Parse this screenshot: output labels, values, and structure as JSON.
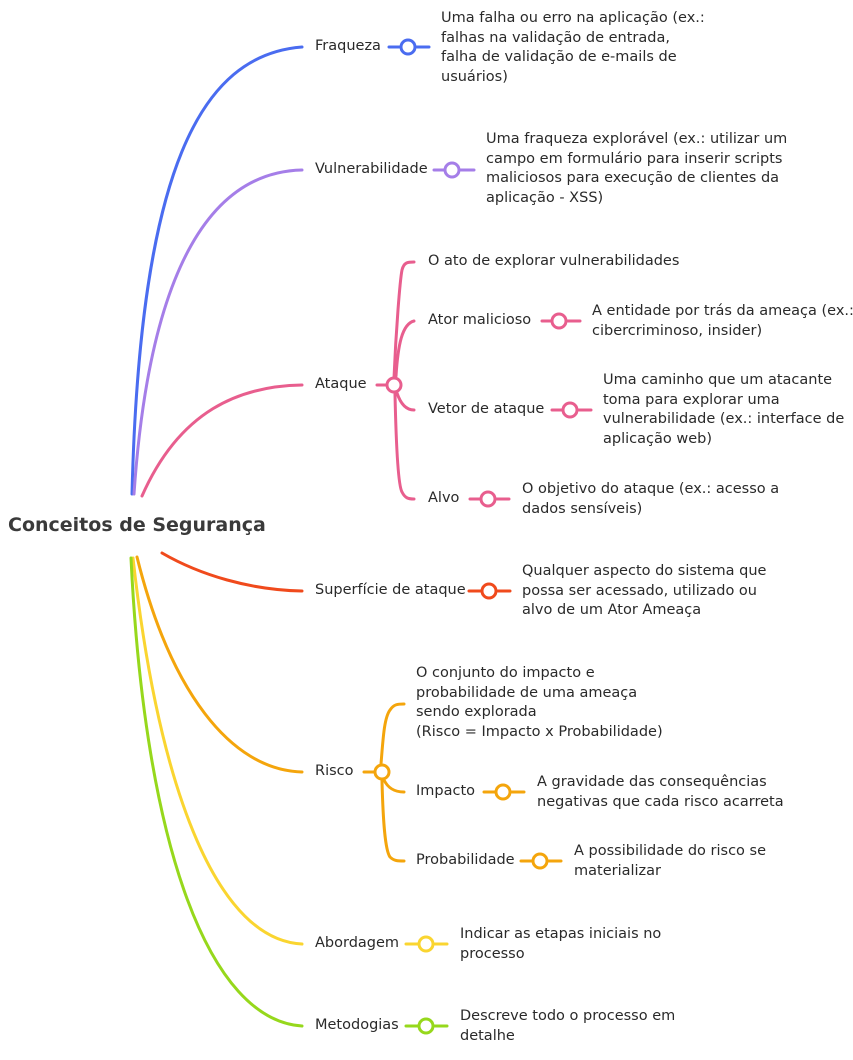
{
  "root": "Conceitos de Segurança",
  "colors": {
    "fraqueza": "#4a6cf0",
    "vulnerabilidade": "#a57ee8",
    "ataque": "#e85e8e",
    "superficie": "#f04a1c",
    "risco": "#f4a50c",
    "abordagem": "#fad530",
    "metodologias": "#96d81c"
  },
  "branches": {
    "fraqueza": {
      "label": "Fraqueza",
      "desc": [
        "Uma falha ou erro na aplicação (ex.:",
        "falhas na validação de entrada,",
        "falha de validação de e-mails de",
        "usuários)"
      ]
    },
    "vulnerabilidade": {
      "label": "Vulnerabilidade",
      "desc": [
        "Uma fraqueza explorável (ex.: utilizar um",
        "campo em formulário para inserir scripts",
        "maliciosos para execução de clientes da",
        "aplicação - XSS)"
      ]
    },
    "ataque": {
      "label": "Ataque",
      "direct": "O ato de explorar vulnerabilidades",
      "children": [
        {
          "label": "Ator malicioso",
          "desc": [
            "A entidade por trás da ameaça (ex.:",
            "cibercriminoso, insider)"
          ]
        },
        {
          "label": "Vetor de ataque",
          "desc": [
            "Uma caminho que um atacante",
            "toma para explorar uma",
            "vulnerabilidade (ex.: interface de",
            "aplicação web)"
          ]
        },
        {
          "label": "Alvo",
          "desc": [
            "O objetivo do ataque (ex.: acesso a",
            "dados sensíveis)"
          ]
        }
      ]
    },
    "superficie": {
      "label": "Superfície de ataque",
      "desc": [
        "Qualquer aspecto do sistema que",
        "possa ser acessado, utilizado ou",
        "alvo de um Ator Ameaça"
      ]
    },
    "risco": {
      "label": "Risco",
      "direct": [
        "O conjunto do impacto e",
        "probabilidade de uma ameaça",
        "sendo explorada",
        "(Risco = Impacto x Probabilidade)"
      ],
      "children": [
        {
          "label": "Impacto",
          "desc": [
            "A gravidade das consequências",
            "negativas que cada risco acarreta"
          ]
        },
        {
          "label": "Probabilidade",
          "desc": [
            "A possibilidade do risco se",
            "materializar"
          ]
        }
      ]
    },
    "abordagem": {
      "label": "Abordagem",
      "desc": [
        "Indicar as etapas iniciais no",
        "processo"
      ]
    },
    "metodologias": {
      "label": "Metodogias",
      "desc": [
        "Descreve todo o processo em",
        "detalhe"
      ]
    }
  }
}
